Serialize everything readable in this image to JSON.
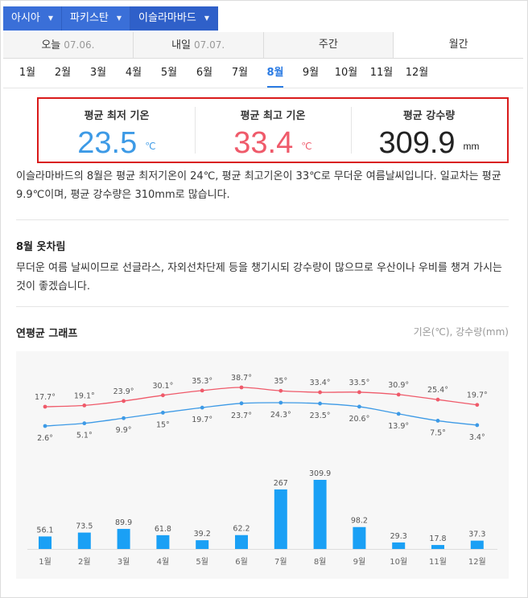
{
  "breadcrumb": [
    {
      "label": "아시아"
    },
    {
      "label": "파키스탄"
    },
    {
      "label": "이슬라마바드"
    }
  ],
  "day_tabs": [
    {
      "label": "오늘",
      "date": "07.06."
    },
    {
      "label": "내일",
      "date": "07.07."
    },
    {
      "label": "주간",
      "date": ""
    },
    {
      "label": "월간",
      "date": ""
    }
  ],
  "months": [
    "1월",
    "2월",
    "3월",
    "4월",
    "5월",
    "6월",
    "7월",
    "8월",
    "9월",
    "10월",
    "11월",
    "12월"
  ],
  "selected_month": "8월",
  "summary": {
    "min": {
      "label": "평균 최저 기온",
      "value": "23.5",
      "unit": "℃"
    },
    "max": {
      "label": "평균 최고 기온",
      "value": "33.4",
      "unit": "℃"
    },
    "rain": {
      "label": "평균 강수량",
      "value": "309.9",
      "unit": "mm"
    }
  },
  "description": "이슬라마바드의 8월은 평균 최저기온이 24℃, 평균 최고기온이 33℃로 무더운 여름날씨입니다. 일교차는 평균 9.9℃이며, 평균 강수량은 310mm로 많습니다.",
  "clothing": {
    "title": "8월 옷차림",
    "text": "무더운 여름 날씨이므로 선글라스, 자외선차단제 등을 챙기시되 강수량이 많으므로 우산이나 우비를 챙겨 가시는 것이 좋겠습니다."
  },
  "chart_section": {
    "title": "연평균 그래프",
    "units": "기온(℃), 강수량(mm)"
  },
  "colors": {
    "accent": "#3a6fd8",
    "max_line": "#ef5a6a",
    "min_line": "#3d9ae6",
    "bar": "#1aa0f5",
    "highlight_box": "#d91a1a"
  },
  "chart_data": {
    "type": "line+bar",
    "categories": [
      "1월",
      "2월",
      "3월",
      "4월",
      "5월",
      "6월",
      "7월",
      "8월",
      "9월",
      "10월",
      "11월",
      "12월"
    ],
    "series": [
      {
        "kind": "line",
        "values": [
          17.7,
          19.1,
          23.9,
          30.1,
          35.3,
          38.7,
          35,
          33.4,
          33.5,
          30.9,
          25.4,
          19.7
        ],
        "labels": [
          "17.7°",
          "19.1°",
          "23.9°",
          "30.1°",
          "35.3°",
          "38.7°",
          "35°",
          "33.4°",
          "33.5°",
          "30.9°",
          "25.4°",
          "19.7°"
        ]
      },
      {
        "kind": "line",
        "values": [
          2.6,
          5.1,
          9.9,
          15,
          19.7,
          23.7,
          24.3,
          23.5,
          20.6,
          13.9,
          7.5,
          3.4
        ],
        "labels": [
          "2.6°",
          "5.1°",
          "9.9°",
          "15°",
          "19.7°",
          "23.7°",
          "24.3°",
          "23.5°",
          "20.6°",
          "13.9°",
          "7.5°",
          "3.4°"
        ]
      },
      {
        "kind": "bar",
        "values": [
          56.1,
          73.5,
          89.9,
          61.8,
          39.2,
          62.2,
          267,
          309.9,
          98.2,
          29.3,
          17.8,
          37.3
        ],
        "labels": [
          "56.1",
          "73.5",
          "89.9",
          "61.8",
          "39.2",
          "62.2",
          "267",
          "309.9",
          "98.2",
          "29.3",
          "17.8",
          "37.3"
        ]
      }
    ],
    "grid": false,
    "legend": "none"
  }
}
